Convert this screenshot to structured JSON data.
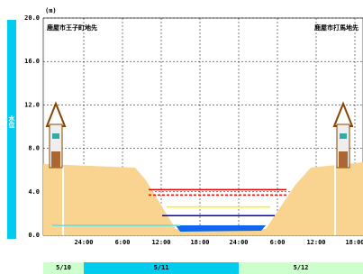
{
  "chart_data": {
    "type": "cross-section",
    "unit": "(m)",
    "y_label": "水位",
    "left_location": "鹿屋市王子町地先",
    "right_location": "鹿屋市打馬地先",
    "ylim": [
      0,
      20
    ],
    "yticks": [
      {
        "value": 0,
        "label": "0.0"
      },
      {
        "value": 4,
        "label": "4.0"
      },
      {
        "value": 8,
        "label": "8.0"
      },
      {
        "value": 12,
        "label": "12.0"
      },
      {
        "value": 16,
        "label": "16.0"
      },
      {
        "value": 20,
        "label": "20.0"
      }
    ],
    "categories": [
      "24:00",
      "6:00",
      "12:00",
      "18:00",
      "24:00",
      "6:00",
      "12:00",
      "18:00"
    ],
    "dates": [
      {
        "label": "5/10",
        "color": "#ccffcc"
      },
      {
        "label": "5/11",
        "color": "#00ccee"
      },
      {
        "label": "5/12",
        "color": "#ccffcc"
      }
    ],
    "levels": [
      {
        "value": 4.2,
        "color": "#ff0000",
        "dashed": false
      },
      {
        "value": 3.7,
        "color": "#ff0000",
        "dashed": true
      },
      {
        "value": 2.6,
        "color": "#ffee00",
        "dashed": false
      },
      {
        "value": 1.8,
        "color": "#0000cc",
        "dashed": false
      },
      {
        "value": 0.9,
        "color": "#66dddd",
        "dashed": false
      }
    ],
    "grid": true
  }
}
